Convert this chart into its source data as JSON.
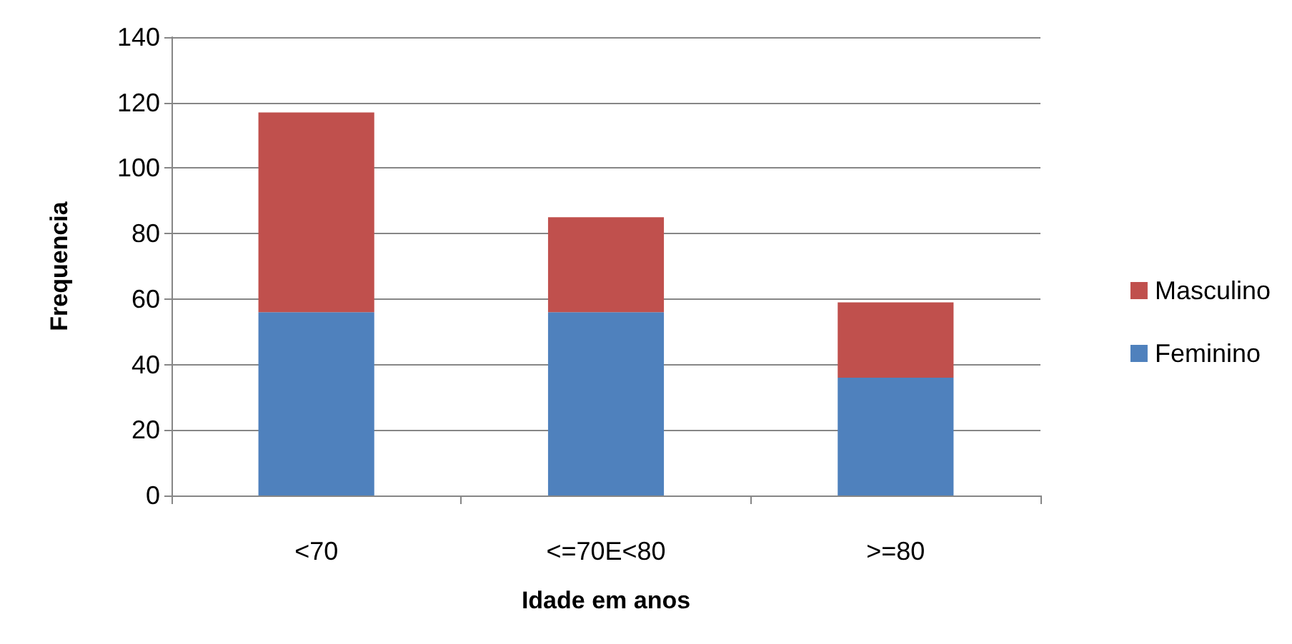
{
  "chart_data": {
    "type": "bar",
    "xlabel": "Idade em anos",
    "ylabel": "Frequencia",
    "categories": [
      "<70",
      "<=70E<80",
      ">=80"
    ],
    "stacked": true,
    "series": [
      {
        "name": "Feminino",
        "color": "#4f81bd",
        "values": [
          56,
          56,
          36
        ]
      },
      {
        "name": "Masculino",
        "color": "#c0504d",
        "values": [
          61,
          29,
          23
        ]
      }
    ],
    "ylim": [
      0,
      140
    ],
    "yticks": [
      0,
      20,
      40,
      60,
      80,
      100,
      120,
      140
    ],
    "grid": "y",
    "legend": "right"
  }
}
